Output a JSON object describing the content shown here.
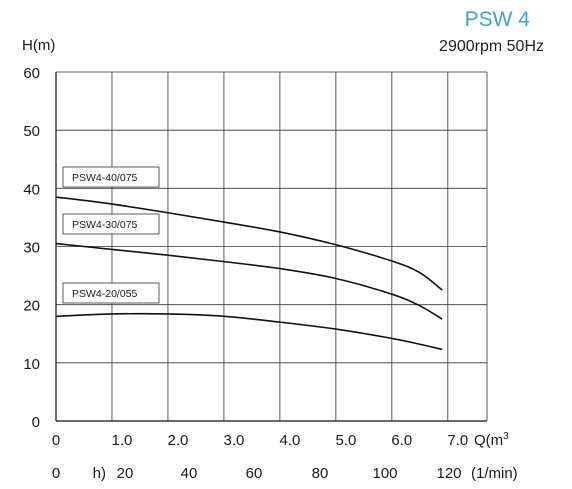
{
  "chart_data": {
    "type": "line",
    "title": "PSW 4",
    "subtitle": "2900rpm 50Hz",
    "ylabel": "H(m)",
    "xlabel_primary_suffix": "Q(m",
    "xlabel_primary_sup": "3",
    "xlabel_secondary_prefix": "h)",
    "xlabel_secondary_suffix": "(1/min)",
    "ylim": [
      0,
      60
    ],
    "xlim": [
      0,
      7.7
    ],
    "y_ticks": [
      "0",
      "10",
      "20",
      "30",
      "40",
      "50",
      "60"
    ],
    "x_ticks_primary": [
      "0",
      "1.0",
      "2.0",
      "3.0",
      "4.0",
      "5.0",
      "6.0",
      "7.0"
    ],
    "x_ticks_secondary": [
      "0",
      "20",
      "40",
      "60",
      "80",
      "100",
      "120"
    ],
    "grid": true,
    "series": [
      {
        "name": "PSW4-40/075",
        "x": [
          0,
          1,
          2,
          3,
          4,
          5,
          6,
          6.5,
          6.9
        ],
        "y": [
          38.5,
          37.3,
          35.8,
          34.2,
          32.5,
          30.3,
          27.5,
          25.5,
          22.5
        ]
      },
      {
        "name": "PSW4-30/075",
        "x": [
          0,
          1,
          2,
          3,
          4,
          5,
          6,
          6.5,
          6.9
        ],
        "y": [
          30.5,
          29.5,
          28.5,
          27.4,
          26.2,
          24.5,
          21.8,
          19.8,
          17.5
        ]
      },
      {
        "name": "PSW4-20/055",
        "x": [
          0,
          1,
          2,
          3,
          4,
          5,
          6,
          6.5,
          6.9
        ],
        "y": [
          18.0,
          18.4,
          18.4,
          18.0,
          17.0,
          15.8,
          14.2,
          13.2,
          12.3
        ]
      }
    ]
  }
}
